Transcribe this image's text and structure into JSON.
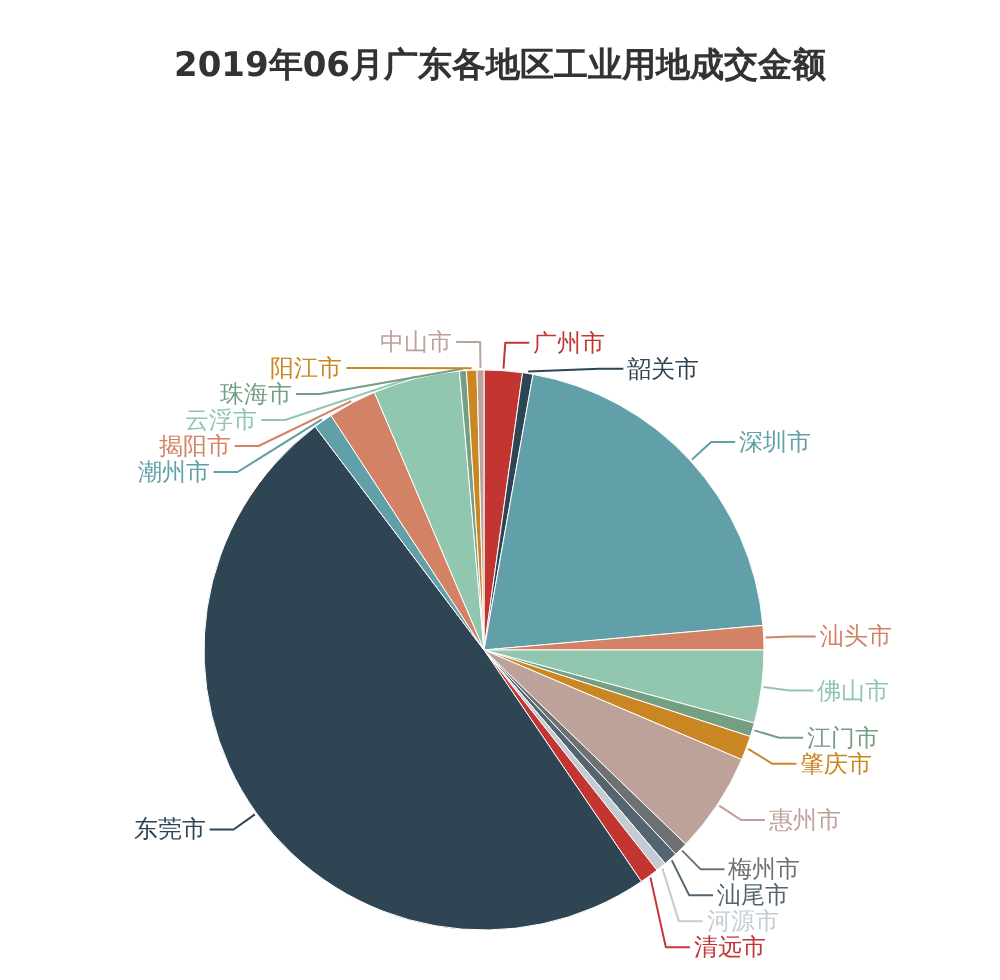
{
  "chart_data": {
    "type": "pie",
    "title": "2019年06月广东各地区工业用地成交金额",
    "categories": [
      "广州市",
      "韶关市",
      "深圳市",
      "汕头市",
      "佛山市",
      "江门市",
      "肇庆市",
      "惠州市",
      "梅州市",
      "汕尾市",
      "河源市",
      "清远市",
      "东莞市",
      "潮州市",
      "揭阳市",
      "云浮市",
      "珠海市",
      "阳江市",
      "中山市"
    ],
    "values": [
      2.2,
      0.6,
      20.8,
      1.4,
      4.2,
      0.8,
      1.4,
      5.8,
      0.8,
      0.8,
      0.6,
      1.1,
      49.2,
      1.1,
      2.8,
      5.0,
      0.4,
      0.6,
      0.4
    ],
    "colors": [
      "#c23531",
      "#2f4554",
      "#61a0a8",
      "#d48265",
      "#91c7ae",
      "#749f83",
      "#ca8622",
      "#bda29a",
      "#6e7074",
      "#546570",
      "#c4ccd3",
      "#c23531",
      "#2f4554",
      "#61a0a8",
      "#d48265",
      "#91c7ae",
      "#749f83",
      "#ca8622",
      "#bda29a"
    ]
  }
}
